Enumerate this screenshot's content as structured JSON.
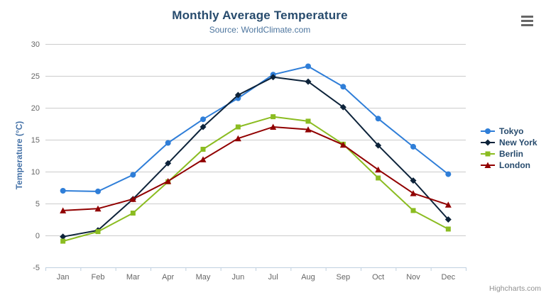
{
  "header": {
    "title": "Monthly Average Temperature",
    "subtitle": "Source: WorldClimate.com"
  },
  "toolbar": {
    "context_menu_icon": "hamburger-icon"
  },
  "credits": {
    "label": "Highcharts.com"
  },
  "colors": {
    "title": "#274b6d",
    "subtitle": "#4d759e",
    "axis_label": "#666666",
    "y_axis_title": "#4572a7",
    "gridline": "#cccccc",
    "axis_line": "#c0d0e0",
    "legend_text": "#274b6d",
    "credits": "#909090",
    "menu_icon": "#666666"
  },
  "chart_data": {
    "type": "line",
    "title": "Monthly Average Temperature",
    "subtitle": "Source: WorldClimate.com",
    "xlabel": "",
    "ylabel": "Temperature (°C)",
    "categories": [
      "Jan",
      "Feb",
      "Mar",
      "Apr",
      "May",
      "Jun",
      "Jul",
      "Aug",
      "Sep",
      "Oct",
      "Nov",
      "Dec"
    ],
    "ylim": [
      -5,
      30
    ],
    "ytick_step": 5,
    "yticks": [
      -5,
      0,
      5,
      10,
      15,
      20,
      25,
      30
    ],
    "grid": true,
    "legend_position": "right",
    "series": [
      {
        "name": "Tokyo",
        "color": "#2f7ed8",
        "marker": "circle",
        "values": [
          7.0,
          6.9,
          9.5,
          14.5,
          18.2,
          21.5,
          25.2,
          26.5,
          23.3,
          18.3,
          13.9,
          9.6
        ]
      },
      {
        "name": "New York",
        "color": "#0d233a",
        "marker": "diamond",
        "values": [
          -0.2,
          0.8,
          5.7,
          11.3,
          17.0,
          22.0,
          24.8,
          24.1,
          20.1,
          14.1,
          8.6,
          2.5
        ]
      },
      {
        "name": "Berlin",
        "color": "#8bbc21",
        "marker": "square",
        "values": [
          -0.9,
          0.6,
          3.5,
          8.4,
          13.5,
          17.0,
          18.6,
          17.9,
          14.3,
          9.0,
          3.9,
          1.0
        ]
      },
      {
        "name": "London",
        "color": "#910000",
        "marker": "triangle",
        "values": [
          3.9,
          4.2,
          5.7,
          8.5,
          11.9,
          15.2,
          17.0,
          16.6,
          14.2,
          10.3,
          6.6,
          4.8
        ]
      }
    ]
  }
}
